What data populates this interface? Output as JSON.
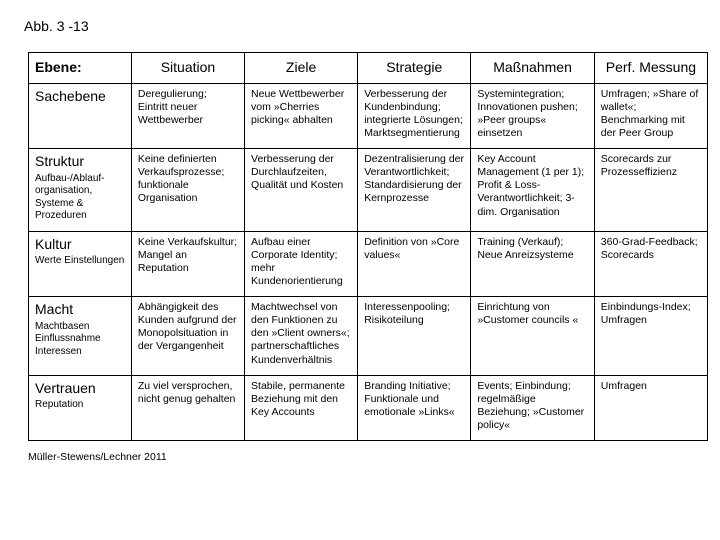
{
  "caption": "Abb. 3 -13",
  "source": "Müller-Stewens/Lechner 2011",
  "header": {
    "col0": "Ebene:",
    "col1": "Situation",
    "col2": "Ziele",
    "col3": "Strategie",
    "col4": "Maßnahmen",
    "col5": "Perf. Messung"
  },
  "rows": [
    {
      "title": "Sachebene",
      "sub": "",
      "situation": "Deregulierung; Eintritt neuer Wettbewerber",
      "ziele": "Neue Wettbewerber vom »Cherries picking« abhalten",
      "strategie": "Verbesserung der Kundenbindung; integrierte Lösungen; Marktsegmentierung",
      "massnahmen": "Systemintegration; Innovationen pushen; »Peer groups« einsetzen",
      "perf": "Umfragen; »Share of wallet«; Benchmarking mit der Peer Group"
    },
    {
      "title": "Struktur",
      "sub": "Aufbau-/Ablauf-organisation, Systeme & Prozeduren",
      "situation": "Keine definierten Verkaufsprozesse; funktionale Organisation",
      "ziele": "Verbesserung der Durchlaufzeiten, Qualität und Kosten",
      "strategie": "Dezentralisierung der Verantwortlichkeit; Standardisierung der Kernprozesse",
      "massnahmen": "Key Account Management (1 per 1); Profit & Loss-Verantwortlichkeit; 3-dim. Organisation",
      "perf": "Scorecards zur Prozesseffizienz"
    },
    {
      "title": "Kultur",
      "sub": "Werte Einstellungen",
      "situation": "Keine Verkaufskultur; Mangel an Reputation",
      "ziele": "Aufbau einer Corporate Identity; mehr Kundenorientierung",
      "strategie": "Definition von »Core values«",
      "massnahmen": "Training (Verkauf); Neue Anreizsysteme",
      "perf": "360-Grad-Feedback; Scorecards"
    },
    {
      "title": "Macht",
      "sub": "Machtbasen Einflussnahme Interessen",
      "situation": "Abhängigkeit des Kunden aufgrund der Monopolsituation in der Vergangenheit",
      "ziele": "Machtwechsel von den Funktionen zu den »Client owners«; partnerschaftliches Kundenverhältnis",
      "strategie": "Interessenpooling; Risikoteilung",
      "massnahmen": "Einrichtung von »Customer councils «",
      "perf": "Einbindungs-Index; Umfragen"
    },
    {
      "title": "Vertrauen",
      "sub": "Reputation",
      "situation": "Zu viel versprochen, nicht genug gehalten",
      "ziele": "Stabile, permanente Beziehung mit den Key Accounts",
      "strategie": "Branding Initiative; Funktionale und emotionale »Links«",
      "massnahmen": "Events; Einbindung; regelmäßige Beziehung; »Customer policy«",
      "perf": "Umfragen"
    }
  ]
}
